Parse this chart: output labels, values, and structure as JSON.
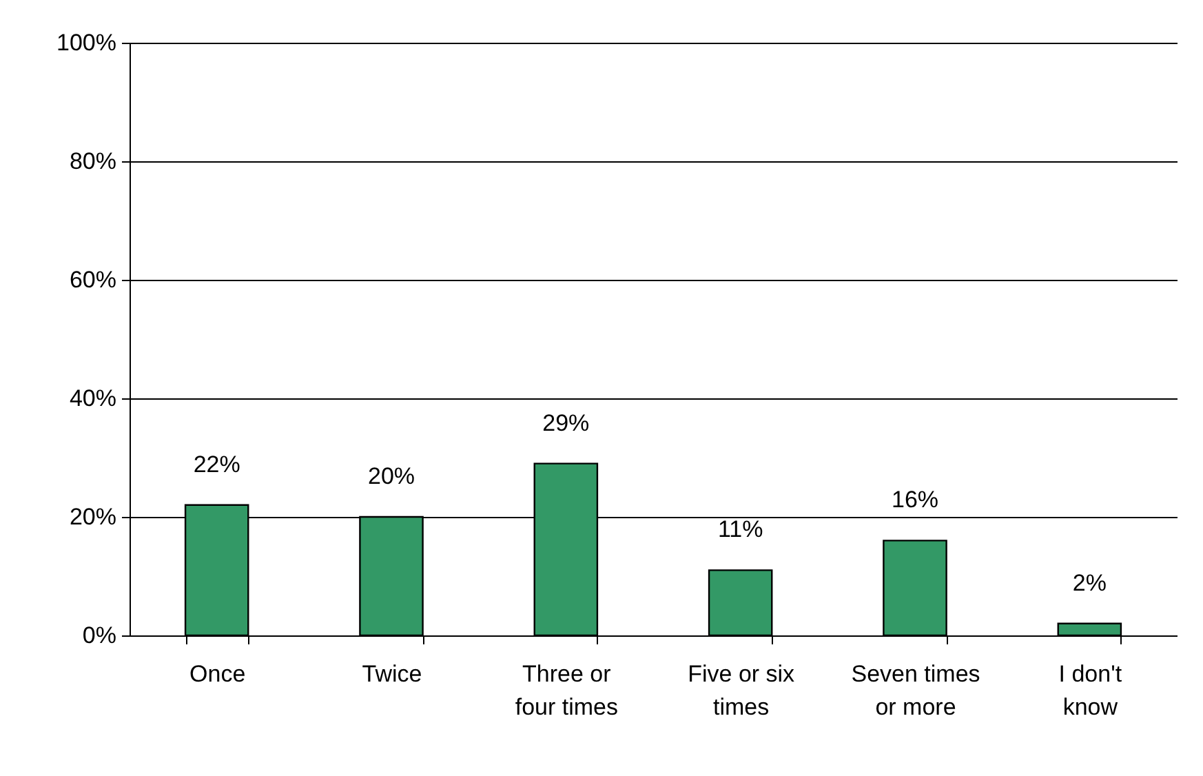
{
  "chart_data": {
    "type": "bar",
    "categories": [
      "Once",
      "Twice",
      "Three or four times",
      "Five or six times",
      "Seven times or more",
      "I don't know"
    ],
    "values": [
      22,
      20,
      29,
      11,
      16,
      2
    ],
    "value_labels": [
      "22%",
      "20%",
      "29%",
      "11%",
      "16%",
      "2%"
    ],
    "color": "#339966",
    "ylim": [
      0,
      100
    ],
    "yticks": [
      {
        "value": 0,
        "label": "0%"
      },
      {
        "value": 20,
        "label": "20%"
      },
      {
        "value": 40,
        "label": "40%"
      },
      {
        "value": 60,
        "label": "60%"
      },
      {
        "value": 80,
        "label": "80%"
      },
      {
        "value": 100,
        "label": "100%"
      }
    ],
    "grid": "y"
  }
}
